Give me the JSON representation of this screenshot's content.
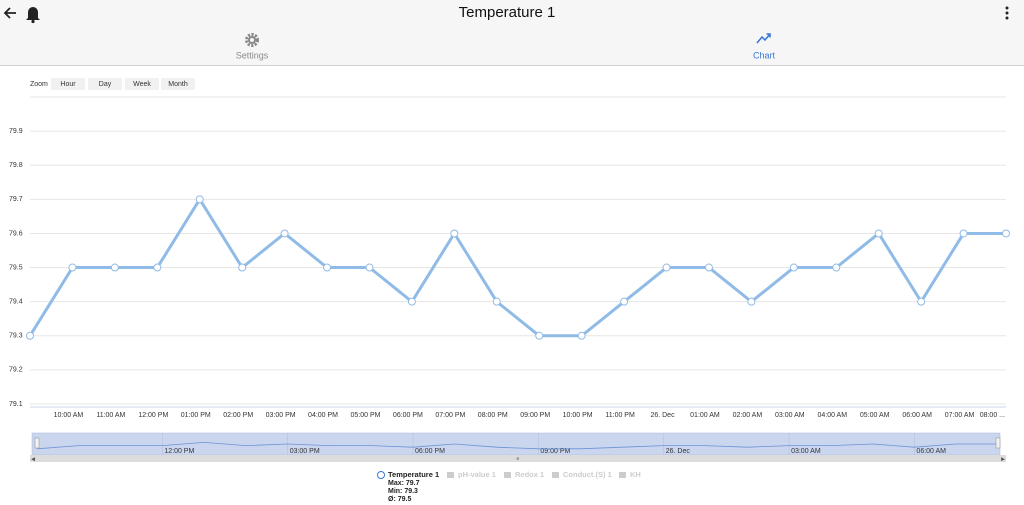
{
  "header": {
    "title": "Temperature 1"
  },
  "tabs": [
    "Settings",
    "Chart"
  ],
  "zoom": {
    "label": "Zoom",
    "buttons": [
      "Hour",
      "Day",
      "Week",
      "Month"
    ]
  },
  "chart_data": {
    "type": "line",
    "categories": [
      null,
      "10:00 AM",
      "11:00 AM",
      "12:00 PM",
      "01:00 PM",
      "02:00 PM",
      "03:00 PM",
      "04:00 PM",
      "05:00 PM",
      "06:00 PM",
      "07:00 PM",
      "08:00 PM",
      "09:00 PM",
      "10:00 PM",
      "11:00 PM",
      "26. Dec",
      "01:00 AM",
      "02:00 AM",
      "03:00 AM",
      "04:00 AM",
      "05:00 AM",
      "06:00 AM",
      "07:00 AM",
      "08:00 ..."
    ],
    "series": [
      {
        "name": "Temperature 1",
        "color": "#90bbe6",
        "values": [
          79.3,
          79.5,
          79.5,
          79.5,
          79.7,
          79.5,
          79.6,
          79.5,
          79.5,
          79.4,
          79.6,
          79.4,
          79.3,
          79.3,
          79.4,
          79.5,
          79.5,
          79.4,
          79.5,
          79.5,
          79.6,
          79.4,
          79.6,
          79.6
        ],
        "stats": [
          "Max: 79.7",
          "Min: 79.3",
          "Ø: 79.5"
        ]
      }
    ],
    "hidden_series": [
      "pH-value 1",
      "Redox 1",
      "Conduct.(S) 1",
      "KH"
    ],
    "ylim": [
      79.1,
      80.0
    ],
    "yticks": [
      79.1,
      79.2,
      79.3,
      79.4,
      79.5,
      79.6,
      79.7,
      79.8,
      79.9
    ],
    "grid": true,
    "navigator": {
      "labels": [
        "12:00 PM",
        "03:00 PM",
        "06:00 PM",
        "09:00 PM",
        "26. Dec",
        "03:00 AM",
        "06:00 AM"
      ]
    }
  }
}
